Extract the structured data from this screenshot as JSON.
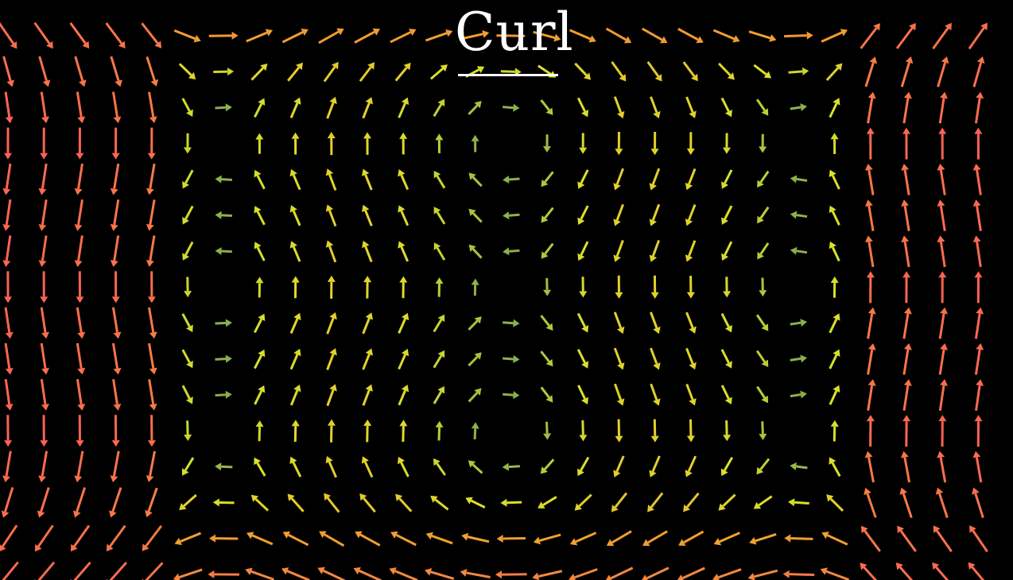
{
  "title": "Curl",
  "colors": {
    "background": "#000000",
    "weak": "#3f7f6f",
    "medium": "#dce12a",
    "strong_mid": "#f0a030",
    "strong": "#fc6255",
    "title": "#ffffff"
  }
}
